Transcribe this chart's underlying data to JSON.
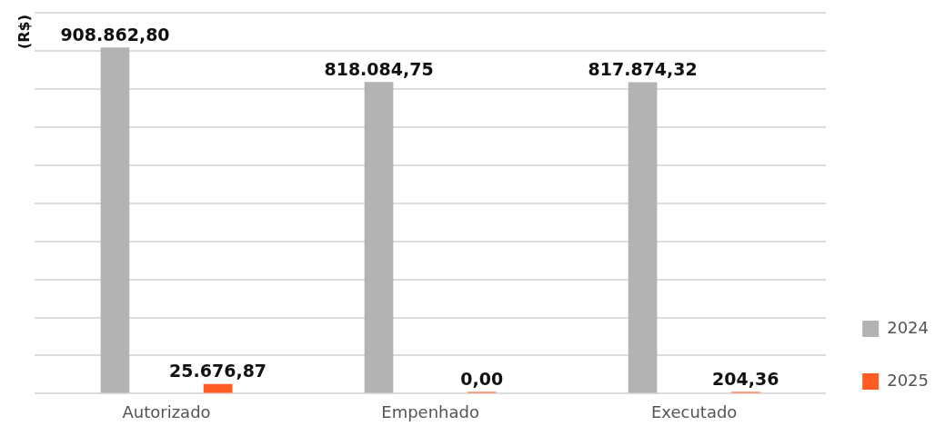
{
  "chart_data": {
    "type": "bar",
    "ylabel": "(R$)",
    "categories": [
      "Autorizado",
      "Empenhado",
      "Executado"
    ],
    "series": [
      {
        "name": "2024",
        "color": "#b3b3b3",
        "values": [
          908862.8,
          818084.75,
          817874.32
        ],
        "value_labels": [
          "908.862,80",
          "818.084,75",
          "817.874,32"
        ]
      },
      {
        "name": "2025",
        "color": "#ff5b24",
        "values": [
          25676.87,
          0.0,
          204.36
        ],
        "value_labels": [
          "25.676,87",
          "0,00",
          "204,36"
        ]
      }
    ],
    "ylim": [
      0,
      1000000
    ],
    "yticks": [
      {
        "value": 0,
        "label": null
      },
      {
        "value": 100000,
        "label": null
      },
      {
        "value": 200000,
        "label": null
      },
      {
        "value": 300000,
        "label": null
      },
      {
        "value": 400000,
        "label": null
      },
      {
        "value": 500000,
        "label": null
      },
      {
        "value": 600000,
        "label": null
      },
      {
        "value": 700000,
        "label": null
      },
      {
        "value": 800000,
        "label": null
      },
      {
        "value": 900000,
        "label": null
      },
      {
        "value": 1000000,
        "label": null
      }
    ],
    "tick_labels": "x",
    "grid": "y",
    "legend": "bottom right"
  }
}
